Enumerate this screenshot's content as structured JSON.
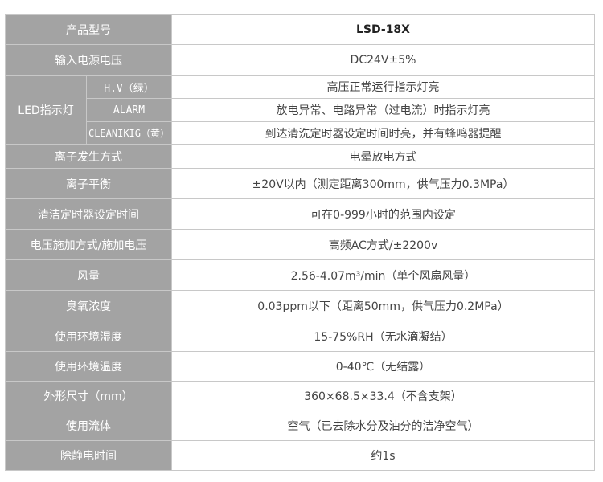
{
  "rows": [
    {
      "label": "产品型号",
      "value": "LSD-18X"
    },
    {
      "label": "输入电源电压",
      "value": "DC24V±5%"
    },
    {
      "label": "LED指示灯",
      "sub": [
        {
          "label": "H.V（绿）",
          "value": "高压正常运行指示灯亮"
        },
        {
          "label": "ALARM",
          "value": "放电异常、电路异常（过电流）时指示灯亮"
        },
        {
          "label": "CLEANIKIG（黄）",
          "value": "到达清洗定时器设定时间时亮，并有蜂鸣器提醒"
        }
      ]
    },
    {
      "label": "离子发生方式",
      "value": "电晕放电方式"
    },
    {
      "label": "离子平衡",
      "value": "±20V以内（测定距离300mm，供气压力0.3MPa）"
    },
    {
      "label": "清洁定时器设定时间",
      "value": "可在0-999小时的范围内设定"
    },
    {
      "label": "电压施加方式/施加电压",
      "value": "高频AC方式/±2200v"
    },
    {
      "label": "风量",
      "value": "2.56-4.07m³/min（单个风扇风量）"
    },
    {
      "label": "臭氧浓度",
      "value": "0.03ppm以下（距离50mm，供气压力0.2MPa）"
    },
    {
      "label": "使用环境湿度",
      "value": "15-75%RH（无水滴凝结）"
    },
    {
      "label": "使用环境温度",
      "value": "0-40℃（无结露）"
    },
    {
      "label": "外形尺寸（mm）",
      "value": "360×68.5×33.4（不含支架）"
    },
    {
      "label": "使用流体",
      "value": "空气（已去除水分及油分的洁净空气）"
    },
    {
      "label": "除静电时间",
      "value": "约1s"
    }
  ],
  "colors": {
    "label_bg": "#a3a3a3",
    "label_text": "#ffffff",
    "value_text": "#444444",
    "border": "#c8c8c8"
  }
}
